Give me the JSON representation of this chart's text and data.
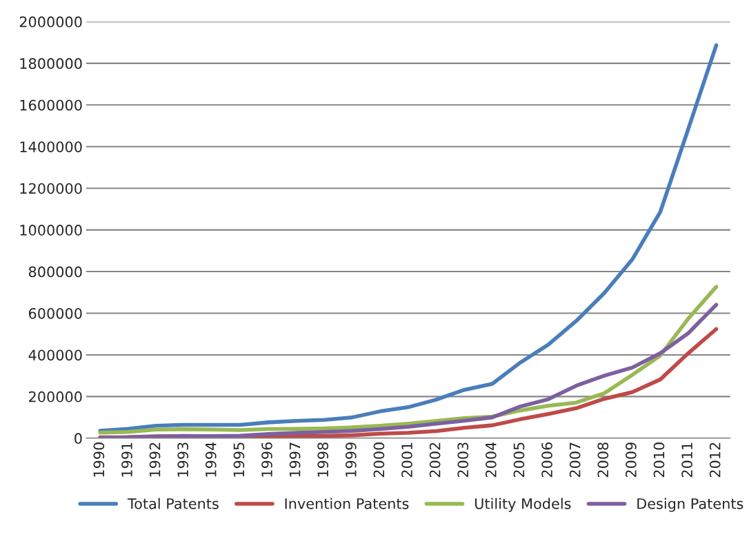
{
  "chart_data": {
    "type": "line",
    "categories": [
      "1990",
      "1991",
      "1992",
      "1993",
      "1994",
      "1995",
      "1996",
      "1997",
      "1998",
      "1999",
      "2000",
      "2001",
      "2002",
      "2003",
      "2004",
      "2005",
      "2006",
      "2007",
      "2008",
      "2009",
      "2010",
      "2011",
      "2012"
    ],
    "series": [
      {
        "name": "Total Patents",
        "color": "#4a7ebb",
        "values": [
          36000,
          45000,
          60000,
          64000,
          64000,
          64000,
          76000,
          83000,
          88000,
          100000,
          129000,
          149000,
          185000,
          232000,
          261000,
          363000,
          449000,
          563000,
          697000,
          858000,
          1086000,
          1485000,
          1887000
        ]
      },
      {
        "name": "Invention Patents",
        "color": "#be4b48",
        "values": [
          4000,
          5000,
          9000,
          11000,
          9000,
          5000,
          8000,
          10000,
          11000,
          14000,
          22000,
          26000,
          34000,
          50000,
          62000,
          91000,
          116000,
          144000,
          189000,
          221000,
          282000,
          408000,
          524000
        ]
      },
      {
        "name": "Utility Models",
        "color": "#98b954",
        "values": [
          27000,
          30000,
          42000,
          43000,
          42000,
          39000,
          44000,
          45000,
          47000,
          52000,
          60000,
          70000,
          83000,
          96000,
          104000,
          133000,
          156000,
          171000,
          216000,
          304000,
          397000,
          574000,
          727000
        ]
      },
      {
        "name": "Design Patents",
        "color": "#7d60a0",
        "values": [
          2000,
          4000,
          8000,
          10000,
          10000,
          12000,
          20000,
          26000,
          30000,
          35000,
          44000,
          55000,
          70000,
          84000,
          100000,
          152000,
          187000,
          252000,
          300000,
          339000,
          408000,
          504000,
          641000
        ]
      }
    ],
    "ylim": [
      0,
      2000000
    ],
    "yticks": [
      0,
      200000,
      400000,
      600000,
      800000,
      1000000,
      1200000,
      1400000,
      1600000,
      1800000,
      2000000
    ],
    "grid": "y",
    "legend": "bottom",
    "line_style": "solid",
    "marker": "none"
  }
}
